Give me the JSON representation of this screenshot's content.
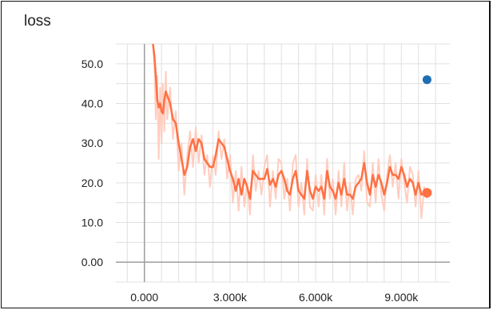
{
  "chart_data": {
    "type": "line",
    "title": "loss",
    "xlabel": "",
    "ylabel": "",
    "xlim": [
      -1000,
      10700
    ],
    "ylim": [
      -5,
      55
    ],
    "x_ticks": [
      0,
      3000,
      6000,
      9000
    ],
    "x_tick_labels": [
      "0.000",
      "3.000k",
      "6.000k",
      "9.000k"
    ],
    "y_ticks": [
      0,
      10,
      20,
      30,
      40,
      50
    ],
    "y_tick_labels": [
      "0.00",
      "10.0",
      "20.0",
      "30.0",
      "40.0",
      "50.0"
    ],
    "x_minor_ticks": [
      -600,
      600,
      1200,
      1800,
      2400,
      3600,
      4200,
      4800,
      5400,
      6600,
      7200,
      7800,
      8400,
      9600,
      10200
    ],
    "y_minor_ticks": [
      -5,
      5,
      15,
      25,
      35,
      45,
      55
    ],
    "grid": true,
    "legend": "none",
    "colors": {
      "smoothed": "#ff7043",
      "raw": "#ffcdbf",
      "marker": "#1f6fb2",
      "grid": "#e0e0e0",
      "axis": "#9e9e9e"
    },
    "series": [
      {
        "role": "smoothed",
        "x": [
          300,
          350,
          400,
          450,
          500,
          550,
          600,
          650,
          700,
          750,
          800,
          900,
          1000,
          1100,
          1200,
          1300,
          1400,
          1500,
          1600,
          1700,
          1800,
          1900,
          2000,
          2100,
          2200,
          2300,
          2400,
          2500,
          2600,
          2700,
          2800,
          2900,
          3000,
          3100,
          3200,
          3300,
          3400,
          3500,
          3600,
          3700,
          3800,
          3900,
          4000,
          4100,
          4200,
          4300,
          4400,
          4500,
          4600,
          4700,
          4800,
          4900,
          5000,
          5100,
          5200,
          5300,
          5400,
          5500,
          5600,
          5700,
          5800,
          5900,
          6000,
          6100,
          6200,
          6300,
          6400,
          6500,
          6600,
          6700,
          6800,
          6900,
          7000,
          7100,
          7200,
          7300,
          7400,
          7500,
          7600,
          7700,
          7800,
          7900,
          8000,
          8100,
          8200,
          8300,
          8400,
          8500,
          8600,
          8700,
          8800,
          8900,
          9000,
          9100,
          9200,
          9300,
          9400,
          9500,
          9600,
          9700,
          9800,
          9900
        ],
        "y": [
          55,
          52,
          47,
          41,
          39,
          40,
          38,
          37.5,
          41,
          43,
          42,
          40,
          36,
          35,
          30,
          26,
          22,
          24,
          29,
          31,
          28,
          31,
          30,
          26,
          25,
          24,
          24,
          27,
          31,
          30,
          29,
          26,
          23,
          21,
          18,
          21,
          17,
          21,
          19,
          16,
          23,
          22,
          21,
          21,
          21,
          23.5,
          19.5,
          21,
          19,
          22,
          23,
          21,
          18,
          17,
          21,
          23,
          18,
          17,
          16,
          23,
          18,
          16,
          19,
          18,
          19,
          16,
          23,
          19,
          18,
          16,
          20,
          17,
          21,
          17,
          17,
          16,
          19,
          20,
          21,
          25,
          20,
          17,
          22,
          19,
          22,
          20,
          17,
          20,
          24,
          22,
          22,
          21,
          24,
          22,
          19,
          21,
          20,
          17,
          20,
          17,
          17.5,
          17.5
        ]
      },
      {
        "role": "raw",
        "x": [
          300,
          350,
          400,
          450,
          500,
          550,
          600,
          650,
          700,
          750,
          800,
          900,
          1000,
          1100,
          1200,
          1300,
          1400,
          1500,
          1600,
          1700,
          1800,
          1900,
          2000,
          2100,
          2200,
          2300,
          2400,
          2500,
          2600,
          2700,
          2800,
          2900,
          3000,
          3100,
          3200,
          3300,
          3400,
          3500,
          3600,
          3700,
          3800,
          3900,
          4000,
          4100,
          4200,
          4300,
          4400,
          4500,
          4600,
          4700,
          4800,
          4900,
          5000,
          5100,
          5200,
          5300,
          5400,
          5500,
          5600,
          5700,
          5800,
          5900,
          6000,
          6100,
          6200,
          6300,
          6400,
          6500,
          6600,
          6700,
          6800,
          6900,
          7000,
          7100,
          7200,
          7300,
          7400,
          7500,
          7600,
          7700,
          7800,
          7900,
          8000,
          8100,
          8200,
          8300,
          8400,
          8500,
          8600,
          8700,
          8800,
          8900,
          9000,
          9100,
          9200,
          9300,
          9400,
          9500,
          9600,
          9700,
          9800,
          9900
        ],
        "y": [
          55,
          50,
          36,
          47,
          26,
          44,
          30,
          45,
          33,
          48,
          36,
          44,
          31,
          38,
          23,
          30,
          17,
          27,
          33,
          24,
          34,
          25,
          32,
          22,
          27,
          19,
          27,
          22,
          33,
          26,
          31,
          21,
          27,
          15,
          23,
          13,
          24,
          14,
          20,
          12,
          27,
          18,
          23,
          17,
          24,
          27,
          14,
          23,
          16,
          26,
          25,
          16,
          21,
          13,
          25,
          27,
          14,
          20,
          12,
          26,
          14,
          13,
          22,
          14,
          22,
          12,
          26,
          16,
          21,
          12,
          23,
          14,
          25,
          13,
          20,
          12,
          21,
          22,
          18,
          28,
          15,
          14,
          25,
          15,
          26,
          17,
          13,
          22,
          27,
          19,
          25,
          16,
          26,
          20,
          15,
          24,
          22,
          14,
          23,
          11,
          19,
          16
        ]
      },
      {
        "role": "marker",
        "x": [
          9900
        ],
        "y": [
          17.5
        ]
      },
      {
        "role": "marker",
        "x": [
          9900
        ],
        "y": [
          46
        ]
      }
    ]
  }
}
